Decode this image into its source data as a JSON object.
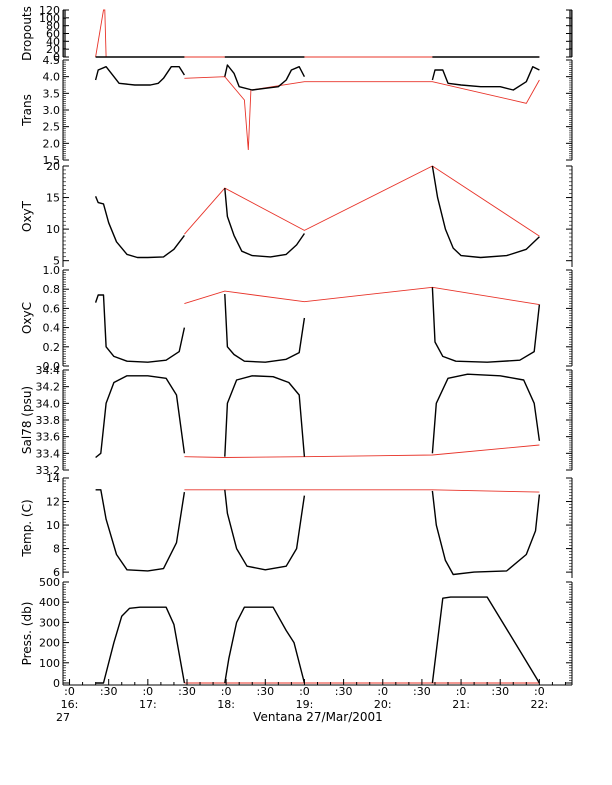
{
  "chart_data": {
    "type": "line",
    "xlabel": "Ventana 27/Mar/2001",
    "x_start_label": "27",
    "x_ticks": [
      {
        "t": 0,
        "top": ":0",
        "bottom": "16:"
      },
      {
        "t": 30,
        "top": ":30",
        "bottom": ""
      },
      {
        "t": 60,
        "top": ":0",
        "bottom": "17:"
      },
      {
        "t": 90,
        "top": ":30",
        "bottom": ""
      },
      {
        "t": 120,
        "top": ":0",
        "bottom": "18:"
      },
      {
        "t": 150,
        "top": ":30",
        "bottom": ""
      },
      {
        "t": 180,
        "top": ":0",
        "bottom": "19:"
      },
      {
        "t": 210,
        "top": ":30",
        "bottom": ""
      },
      {
        "t": 240,
        "top": ":0",
        "bottom": "20:"
      },
      {
        "t": 270,
        "top": ":30",
        "bottom": ""
      },
      {
        "t": 300,
        "top": ":0",
        "bottom": "21:"
      },
      {
        "t": 330,
        "top": ":30",
        "bottom": ""
      },
      {
        "t": 360,
        "top": ":0",
        "bottom": "22:"
      }
    ],
    "xlim": [
      -5,
      385
    ],
    "panels": [
      {
        "ylabel": "Dropouts",
        "ylim": [
          0,
          120
        ],
        "ticks": [
          "0",
          "20",
          "40",
          "60",
          "80",
          "100",
          "120"
        ],
        "tick_values": [
          0,
          20,
          40,
          60,
          80,
          100,
          120
        ],
        "red_points": [
          [
            20,
            0
          ],
          [
            26,
            120
          ],
          [
            27,
            120
          ],
          [
            28,
            0
          ],
          [
            60,
            0
          ],
          [
            88,
            0
          ],
          [
            119,
            0
          ],
          [
            180,
            0
          ],
          [
            278,
            0
          ],
          [
            360,
            0
          ]
        ],
        "black_segments": [
          [
            [
              20,
              0
            ],
            [
              88,
              0
            ]
          ],
          [
            [
              119,
              0
            ],
            [
              180,
              0
            ]
          ],
          [
            [
              278,
              0
            ],
            [
              360,
              0
            ]
          ]
        ]
      },
      {
        "ylabel": "Trans",
        "ylim": [
          1.5,
          4.5
        ],
        "ticks": [
          "1.5",
          "2.0",
          "2.5",
          "3.0",
          "3.5",
          "4.0",
          "4.5"
        ],
        "tick_values": [
          1.5,
          2.0,
          2.5,
          3.0,
          3.5,
          4.0,
          4.5
        ],
        "red_points": [
          [
            88,
            3.95
          ],
          [
            119,
            4.0
          ],
          [
            134,
            3.3
          ],
          [
            137,
            1.8
          ],
          [
            139,
            3.6
          ],
          [
            180,
            3.85
          ],
          [
            278,
            3.85
          ],
          [
            350,
            3.2
          ],
          [
            360,
            3.9
          ]
        ],
        "black_segments": [
          [
            [
              20,
              3.9
            ],
            [
              22,
              4.2
            ],
            [
              28,
              4.3
            ],
            [
              32,
              4.1
            ],
            [
              38,
              3.8
            ],
            [
              50,
              3.75
            ],
            [
              62,
              3.75
            ],
            [
              68,
              3.8
            ],
            [
              72,
              3.95
            ],
            [
              78,
              4.3
            ],
            [
              84,
              4.3
            ],
            [
              88,
              4.05
            ]
          ],
          [
            [
              119,
              4.0
            ],
            [
              121,
              4.35
            ],
            [
              126,
              4.1
            ],
            [
              130,
              3.7
            ],
            [
              140,
              3.6
            ],
            [
              150,
              3.65
            ],
            [
              160,
              3.7
            ],
            [
              166,
              3.9
            ],
            [
              170,
              4.2
            ],
            [
              176,
              4.3
            ],
            [
              180,
              4.0
            ]
          ],
          [
            [
              278,
              3.9
            ],
            [
              280,
              4.2
            ],
            [
              286,
              4.2
            ],
            [
              290,
              3.8
            ],
            [
              300,
              3.75
            ],
            [
              315,
              3.7
            ],
            [
              330,
              3.7
            ],
            [
              340,
              3.6
            ],
            [
              350,
              3.85
            ],
            [
              355,
              4.3
            ],
            [
              360,
              4.2
            ]
          ]
        ]
      },
      {
        "ylabel": "OxyT",
        "ylim": [
          4,
          20
        ],
        "ticks": [
          "5",
          "10",
          "15",
          "20"
        ],
        "tick_values": [
          5,
          10,
          15,
          20
        ],
        "red_points": [
          [
            88,
            9.2
          ],
          [
            119,
            16.5
          ],
          [
            180,
            9.8
          ],
          [
            278,
            20
          ],
          [
            360,
            8.9
          ]
        ],
        "black_segments": [
          [
            [
              20,
              15.2
            ],
            [
              22,
              14.2
            ],
            [
              26,
              14.0
            ],
            [
              30,
              11
            ],
            [
              36,
              8
            ],
            [
              44,
              6
            ],
            [
              52,
              5.5
            ],
            [
              60,
              5.5
            ],
            [
              72,
              5.6
            ],
            [
              80,
              6.8
            ],
            [
              88,
              9.0
            ]
          ],
          [
            [
              119,
              16.5
            ],
            [
              121,
              12
            ],
            [
              126,
              9
            ],
            [
              132,
              6.5
            ],
            [
              140,
              5.8
            ],
            [
              154,
              5.6
            ],
            [
              166,
              6.0
            ],
            [
              174,
              7.5
            ],
            [
              180,
              9.3
            ]
          ],
          [
            [
              278,
              20
            ],
            [
              282,
              15
            ],
            [
              288,
              10
            ],
            [
              294,
              7
            ],
            [
              300,
              5.8
            ],
            [
              315,
              5.5
            ],
            [
              335,
              5.8
            ],
            [
              350,
              6.8
            ],
            [
              360,
              8.8
            ]
          ]
        ]
      },
      {
        "ylabel": "OxyC",
        "ylim": [
          0.0,
          1.0
        ],
        "ticks": [
          "0.0",
          "0.2",
          "0.4",
          "0.6",
          "0.8",
          "1.0"
        ],
        "tick_values": [
          0.0,
          0.2,
          0.4,
          0.6,
          0.8,
          1.0
        ],
        "red_points": [
          [
            88,
            0.65
          ],
          [
            119,
            0.78
          ],
          [
            180,
            0.67
          ],
          [
            278,
            0.82
          ],
          [
            360,
            0.64
          ]
        ],
        "black_segments": [
          [
            [
              20,
              0.66
            ],
            [
              22,
              0.74
            ],
            [
              26,
              0.74
            ],
            [
              28,
              0.2
            ],
            [
              34,
              0.1
            ],
            [
              44,
              0.05
            ],
            [
              60,
              0.04
            ],
            [
              74,
              0.06
            ],
            [
              84,
              0.15
            ],
            [
              88,
              0.4
            ]
          ],
          [
            [
              119,
              0.75
            ],
            [
              121,
              0.2
            ],
            [
              126,
              0.12
            ],
            [
              134,
              0.05
            ],
            [
              150,
              0.04
            ],
            [
              166,
              0.07
            ],
            [
              176,
              0.14
            ],
            [
              180,
              0.5
            ]
          ],
          [
            [
              278,
              0.82
            ],
            [
              280,
              0.25
            ],
            [
              286,
              0.1
            ],
            [
              296,
              0.05
            ],
            [
              320,
              0.04
            ],
            [
              345,
              0.06
            ],
            [
              356,
              0.15
            ],
            [
              360,
              0.64
            ]
          ]
        ]
      },
      {
        "ylabel": "Sal78 (psu)",
        "ylim": [
          33.2,
          34.4
        ],
        "ticks": [
          "33.2",
          "33.4",
          "33.6",
          "33.8",
          "34.0",
          "34.2",
          "34.4"
        ],
        "tick_values": [
          33.2,
          33.4,
          33.6,
          33.8,
          34.0,
          34.2,
          34.4
        ],
        "red_points": [
          [
            88,
            33.36
          ],
          [
            119,
            33.35
          ],
          [
            180,
            33.36
          ],
          [
            278,
            33.38
          ],
          [
            360,
            33.5
          ]
        ],
        "black_segments": [
          [
            [
              20,
              33.35
            ],
            [
              24,
              33.4
            ],
            [
              28,
              34.0
            ],
            [
              34,
              34.25
            ],
            [
              44,
              34.33
            ],
            [
              60,
              34.33
            ],
            [
              74,
              34.3
            ],
            [
              82,
              34.1
            ],
            [
              88,
              33.4
            ]
          ],
          [
            [
              119,
              33.36
            ],
            [
              121,
              34.0
            ],
            [
              128,
              34.28
            ],
            [
              140,
              34.33
            ],
            [
              156,
              34.32
            ],
            [
              168,
              34.25
            ],
            [
              176,
              34.1
            ],
            [
              180,
              33.36
            ]
          ],
          [
            [
              278,
              33.4
            ],
            [
              281,
              34.0
            ],
            [
              290,
              34.3
            ],
            [
              305,
              34.35
            ],
            [
              330,
              34.33
            ],
            [
              348,
              34.28
            ],
            [
              356,
              34.0
            ],
            [
              360,
              33.55
            ]
          ]
        ]
      },
      {
        "ylabel": "Temp. (C)",
        "ylim": [
          5.5,
          14
        ],
        "ticks": [
          "6",
          "8",
          "10",
          "12",
          "14"
        ],
        "tick_values": [
          6,
          8,
          10,
          12,
          14
        ],
        "red_points": [
          [
            88,
            13.0
          ],
          [
            119,
            13.0
          ],
          [
            180,
            13.0
          ],
          [
            278,
            13.0
          ],
          [
            360,
            12.8
          ]
        ],
        "black_segments": [
          [
            [
              20,
              13.0
            ],
            [
              24,
              13.0
            ],
            [
              28,
              10.5
            ],
            [
              36,
              7.5
            ],
            [
              44,
              6.2
            ],
            [
              60,
              6.1
            ],
            [
              72,
              6.3
            ],
            [
              82,
              8.5
            ],
            [
              88,
              12.8
            ]
          ],
          [
            [
              119,
              13.0
            ],
            [
              121,
              11
            ],
            [
              128,
              8
            ],
            [
              136,
              6.5
            ],
            [
              150,
              6.2
            ],
            [
              166,
              6.5
            ],
            [
              174,
              8
            ],
            [
              180,
              12.5
            ]
          ],
          [
            [
              278,
              12.9
            ],
            [
              281,
              10
            ],
            [
              288,
              7
            ],
            [
              294,
              5.8
            ],
            [
              310,
              6.0
            ],
            [
              335,
              6.1
            ],
            [
              350,
              7.5
            ],
            [
              357,
              9.5
            ],
            [
              360,
              12.6
            ]
          ]
        ]
      },
      {
        "ylabel": "Press. (db)",
        "ylim": [
          -10,
          500
        ],
        "ticks": [
          "0",
          "100",
          "200",
          "300",
          "400",
          "500"
        ],
        "tick_values": [
          0,
          100,
          200,
          300,
          400,
          500
        ],
        "red_points": [
          [
            88,
            0
          ],
          [
            119,
            0
          ],
          [
            180,
            0
          ],
          [
            278,
            0
          ],
          [
            360,
            0
          ]
        ],
        "black_segments": [
          [
            [
              20,
              0
            ],
            [
              26,
              0
            ],
            [
              34,
              200
            ],
            [
              40,
              330
            ],
            [
              46,
              370
            ],
            [
              54,
              375
            ],
            [
              74,
              375
            ],
            [
              80,
              290
            ],
            [
              88,
              0
            ]
          ],
          [
            [
              119,
              0
            ],
            [
              122,
              120
            ],
            [
              128,
              300
            ],
            [
              134,
              375
            ],
            [
              156,
              375
            ],
            [
              166,
              260
            ],
            [
              172,
              200
            ],
            [
              180,
              0
            ]
          ],
          [
            [
              278,
              0
            ],
            [
              286,
              420
            ],
            [
              292,
              425
            ],
            [
              320,
              425
            ],
            [
              346,
              150
            ],
            [
              360,
              0
            ]
          ]
        ]
      }
    ]
  }
}
